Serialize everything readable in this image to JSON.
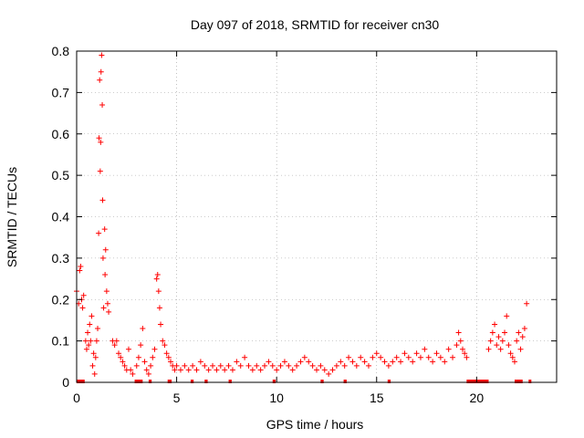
{
  "chart_data": {
    "type": "scatter",
    "title": "Day 097 of 2018, SRMTID for receiver cn30",
    "xlabel": "GPS time / hours",
    "ylabel": "SRMTID / TECUs",
    "xlim": [
      0,
      24
    ],
    "ylim": [
      0,
      0.8
    ],
    "xticks": [
      0,
      5,
      10,
      15,
      20
    ],
    "yticks": [
      0,
      0.1,
      0.2,
      0.3,
      0.4,
      0.5,
      0.6,
      0.7,
      0.8
    ],
    "grid": true,
    "marker": "+",
    "color": "#ff0000",
    "series": [
      {
        "name": "SRMTID",
        "points": [
          [
            0.0,
            0.22
          ],
          [
            0.1,
            0.19
          ],
          [
            0.15,
            0.27
          ],
          [
            0.2,
            0.28
          ],
          [
            0.25,
            0.2
          ],
          [
            0.3,
            0.18
          ],
          [
            0.35,
            0.21
          ],
          [
            0.45,
            0.1
          ],
          [
            0.5,
            0.08
          ],
          [
            0.55,
            0.12
          ],
          [
            0.6,
            0.09
          ],
          [
            0.65,
            0.14
          ],
          [
            0.7,
            0.1
          ],
          [
            0.75,
            0.16
          ],
          [
            0.8,
            0.04
          ],
          [
            0.85,
            0.07
          ],
          [
            0.9,
            0.02
          ],
          [
            0.95,
            0.06
          ],
          [
            1.0,
            0.1
          ],
          [
            1.05,
            0.13
          ],
          [
            1.1,
            0.36
          ],
          [
            1.12,
            0.59
          ],
          [
            1.15,
            0.73
          ],
          [
            1.18,
            0.51
          ],
          [
            1.2,
            0.58
          ],
          [
            1.22,
            0.75
          ],
          [
            1.25,
            0.79
          ],
          [
            1.28,
            0.67
          ],
          [
            1.3,
            0.44
          ],
          [
            1.32,
            0.3
          ],
          [
            1.35,
            0.18
          ],
          [
            1.4,
            0.37
          ],
          [
            1.42,
            0.26
          ],
          [
            1.45,
            0.32
          ],
          [
            1.5,
            0.22
          ],
          [
            1.55,
            0.19
          ],
          [
            1.6,
            0.17
          ],
          [
            1.8,
            0.1
          ],
          [
            1.9,
            0.09
          ],
          [
            2.0,
            0.1
          ],
          [
            2.1,
            0.07
          ],
          [
            2.2,
            0.06
          ],
          [
            2.3,
            0.05
          ],
          [
            2.4,
            0.04
          ],
          [
            2.5,
            0.03
          ],
          [
            2.6,
            0.08
          ],
          [
            2.7,
            0.03
          ],
          [
            2.8,
            0.02
          ],
          [
            3.0,
            0.04
          ],
          [
            3.1,
            0.06
          ],
          [
            3.2,
            0.09
          ],
          [
            3.3,
            0.13
          ],
          [
            3.4,
            0.05
          ],
          [
            3.5,
            0.03
          ],
          [
            3.6,
            0.02
          ],
          [
            3.7,
            0.04
          ],
          [
            3.8,
            0.06
          ],
          [
            3.9,
            0.08
          ],
          [
            4.0,
            0.25
          ],
          [
            4.05,
            0.26
          ],
          [
            4.1,
            0.22
          ],
          [
            4.15,
            0.18
          ],
          [
            4.2,
            0.14
          ],
          [
            4.3,
            0.1
          ],
          [
            4.4,
            0.09
          ],
          [
            4.5,
            0.07
          ],
          [
            4.6,
            0.06
          ],
          [
            4.7,
            0.05
          ],
          [
            4.8,
            0.04
          ],
          [
            4.9,
            0.03
          ],
          [
            5.0,
            0.04
          ],
          [
            5.2,
            0.03
          ],
          [
            5.4,
            0.04
          ],
          [
            5.6,
            0.03
          ],
          [
            5.8,
            0.04
          ],
          [
            6.0,
            0.03
          ],
          [
            6.2,
            0.05
          ],
          [
            6.4,
            0.04
          ],
          [
            6.6,
            0.03
          ],
          [
            6.8,
            0.04
          ],
          [
            7.0,
            0.03
          ],
          [
            7.2,
            0.04
          ],
          [
            7.4,
            0.03
          ],
          [
            7.6,
            0.04
          ],
          [
            7.8,
            0.03
          ],
          [
            8.0,
            0.05
          ],
          [
            8.2,
            0.04
          ],
          [
            8.4,
            0.06
          ],
          [
            8.6,
            0.04
          ],
          [
            8.8,
            0.03
          ],
          [
            9.0,
            0.04
          ],
          [
            9.2,
            0.03
          ],
          [
            9.4,
            0.04
          ],
          [
            9.6,
            0.05
          ],
          [
            9.8,
            0.04
          ],
          [
            10.0,
            0.03
          ],
          [
            10.2,
            0.04
          ],
          [
            10.4,
            0.05
          ],
          [
            10.6,
            0.04
          ],
          [
            10.8,
            0.03
          ],
          [
            11.0,
            0.04
          ],
          [
            11.2,
            0.05
          ],
          [
            11.4,
            0.06
          ],
          [
            11.6,
            0.05
          ],
          [
            11.8,
            0.04
          ],
          [
            12.0,
            0.03
          ],
          [
            12.2,
            0.04
          ],
          [
            12.4,
            0.03
          ],
          [
            12.6,
            0.02
          ],
          [
            12.8,
            0.03
          ],
          [
            13.0,
            0.04
          ],
          [
            13.2,
            0.05
          ],
          [
            13.4,
            0.04
          ],
          [
            13.6,
            0.06
          ],
          [
            13.8,
            0.05
          ],
          [
            14.0,
            0.04
          ],
          [
            14.2,
            0.06
          ],
          [
            14.4,
            0.05
          ],
          [
            14.6,
            0.04
          ],
          [
            14.8,
            0.06
          ],
          [
            15.0,
            0.07
          ],
          [
            15.2,
            0.06
          ],
          [
            15.4,
            0.05
          ],
          [
            15.6,
            0.04
          ],
          [
            15.8,
            0.05
          ],
          [
            16.0,
            0.06
          ],
          [
            16.2,
            0.05
          ],
          [
            16.4,
            0.07
          ],
          [
            16.6,
            0.06
          ],
          [
            16.8,
            0.05
          ],
          [
            17.0,
            0.07
          ],
          [
            17.2,
            0.06
          ],
          [
            17.4,
            0.08
          ],
          [
            17.6,
            0.06
          ],
          [
            17.8,
            0.05
          ],
          [
            18.0,
            0.07
          ],
          [
            18.2,
            0.06
          ],
          [
            18.4,
            0.05
          ],
          [
            18.6,
            0.08
          ],
          [
            18.8,
            0.06
          ],
          [
            19.0,
            0.09
          ],
          [
            19.1,
            0.12
          ],
          [
            19.2,
            0.1
          ],
          [
            19.3,
            0.08
          ],
          [
            19.4,
            0.07
          ],
          [
            19.5,
            0.06
          ],
          [
            20.6,
            0.08
          ],
          [
            20.7,
            0.1
          ],
          [
            20.8,
            0.12
          ],
          [
            20.9,
            0.14
          ],
          [
            21.0,
            0.09
          ],
          [
            21.1,
            0.11
          ],
          [
            21.2,
            0.08
          ],
          [
            21.3,
            0.1
          ],
          [
            21.4,
            0.12
          ],
          [
            21.5,
            0.16
          ],
          [
            21.6,
            0.09
          ],
          [
            21.7,
            0.07
          ],
          [
            21.8,
            0.06
          ],
          [
            21.9,
            0.05
          ],
          [
            22.0,
            0.1
          ],
          [
            22.1,
            0.12
          ],
          [
            22.2,
            0.08
          ],
          [
            22.3,
            0.11
          ],
          [
            22.4,
            0.13
          ],
          [
            22.5,
            0.19
          ]
        ]
      }
    ],
    "zero_segments": [
      [
        0.0,
        0.4
      ],
      [
        2.9,
        3.3
      ],
      [
        3.6,
        3.75
      ],
      [
        4.55,
        4.75
      ],
      [
        5.7,
        5.85
      ],
      [
        6.4,
        6.55
      ],
      [
        7.6,
        7.75
      ],
      [
        9.8,
        9.95
      ],
      [
        12.2,
        12.35
      ],
      [
        13.35,
        13.5
      ],
      [
        15.55,
        15.7
      ],
      [
        19.5,
        20.6
      ],
      [
        21.9,
        22.3
      ],
      [
        22.6,
        22.7
      ]
    ]
  }
}
